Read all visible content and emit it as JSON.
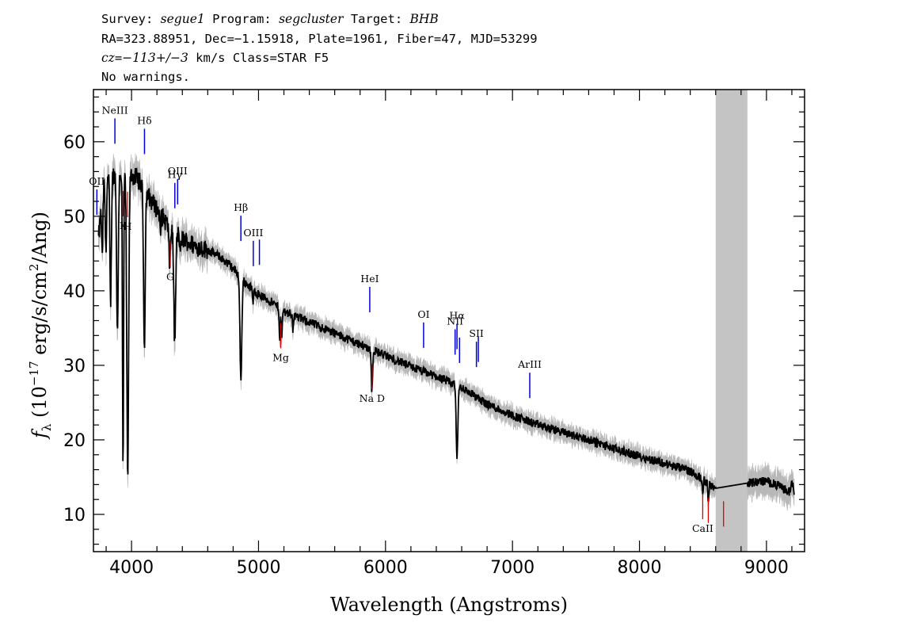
{
  "header": {
    "line1": {
      "survey_label": "Survey: ",
      "survey": "segue1",
      "program_label": " Program: ",
      "program": "segcluster",
      "target_label": " Target: ",
      "target": "BHB"
    },
    "line2": "RA=323.88951, Dec=−1.15918, Plate=1961, Fiber=47, MJD=53299",
    "line3": {
      "cz_label": "cz",
      "cz_mid": "=",
      "cz_value": "−113+/−3",
      "rest": " km/s Class=STAR F5"
    },
    "line4": "No warnings."
  },
  "chart_data": {
    "type": "line",
    "xlabel": "Wavelength (Angstroms)",
    "ylabel": {
      "f": "f",
      "sub": "λ",
      "a": " (10",
      "exp": "−17",
      "b": " erg/s/cm",
      "exp2": "2",
      "c": "/Ang)"
    },
    "xlim": [
      3700,
      9300
    ],
    "ylim": [
      5,
      67
    ],
    "x_ticks": [
      4000,
      5000,
      6000,
      7000,
      8000,
      9000
    ],
    "x_tick_labels": [
      "4000",
      "5000",
      "6000",
      "7000",
      "8000",
      "9000"
    ],
    "y_ticks": [
      10,
      20,
      30,
      40,
      50,
      60
    ],
    "y_tick_labels": [
      "10",
      "20",
      "30",
      "40",
      "50",
      "60"
    ],
    "masked_region": [
      8600,
      8850
    ],
    "continuum": [
      [
        3740,
        47
      ],
      [
        3780,
        54
      ],
      [
        3800,
        55
      ],
      [
        3900,
        56
      ],
      [
        3950,
        55
      ],
      [
        4000,
        55.5
      ],
      [
        4050,
        55
      ],
      [
        4100,
        53.5
      ],
      [
        4200,
        51
      ],
      [
        4300,
        48.5
      ],
      [
        4400,
        47
      ],
      [
        4500,
        46
      ],
      [
        4600,
        45.5
      ],
      [
        4700,
        44.5
      ],
      [
        4800,
        43
      ],
      [
        4900,
        41
      ],
      [
        5000,
        39.5
      ],
      [
        5100,
        38.5
      ],
      [
        5200,
        37.3
      ],
      [
        5400,
        35.8
      ],
      [
        5600,
        34.3
      ],
      [
        5800,
        32.8
      ],
      [
        6000,
        31.3
      ],
      [
        6200,
        29.8
      ],
      [
        6400,
        28.5
      ],
      [
        6600,
        27
      ],
      [
        6800,
        24.8
      ],
      [
        7000,
        23.3
      ],
      [
        7200,
        22
      ],
      [
        7400,
        21
      ],
      [
        7600,
        20
      ],
      [
        7800,
        18.8
      ],
      [
        8000,
        17.8
      ],
      [
        8200,
        16.8
      ],
      [
        8400,
        15.8
      ],
      [
        8600,
        13.5
      ],
      [
        8850,
        14.2
      ],
      [
        9000,
        14.5
      ],
      [
        9100,
        13.8
      ],
      [
        9180,
        13
      ],
      [
        9200,
        14.3
      ],
      [
        9220,
        13
      ]
    ],
    "absorption_lines": [
      {
        "x": 3770,
        "depth": 8,
        "w": 6
      },
      {
        "x": 3798,
        "depth": 10,
        "w": 7
      },
      {
        "x": 3835,
        "depth": 17,
        "w": 8
      },
      {
        "x": 3889,
        "depth": 22,
        "w": 9
      },
      {
        "x": 3933,
        "depth": 40,
        "w": 6
      },
      {
        "x": 3970,
        "depth": 41,
        "w": 10
      },
      {
        "x": 4101,
        "depth": 21,
        "w": 9
      },
      {
        "x": 4227,
        "depth": 3,
        "w": 5
      },
      {
        "x": 4300,
        "depth": 5,
        "w": 8
      },
      {
        "x": 4340,
        "depth": 15,
        "w": 10
      },
      {
        "x": 4384,
        "depth": 3,
        "w": 5
      },
      {
        "x": 4861,
        "depth": 14,
        "w": 10
      },
      {
        "x": 4957,
        "depth": 2,
        "w": 5
      },
      {
        "x": 5167,
        "depth": 4,
        "w": 6
      },
      {
        "x": 5183,
        "depth": 4,
        "w": 6
      },
      {
        "x": 5270,
        "depth": 2,
        "w": 5
      },
      {
        "x": 5890,
        "depth": 4,
        "w": 5
      },
      {
        "x": 5896,
        "depth": 4,
        "w": 5
      },
      {
        "x": 6563,
        "depth": 10,
        "w": 9
      },
      {
        "x": 8498,
        "depth": 1.5,
        "w": 5
      },
      {
        "x": 8542,
        "depth": 2.5,
        "w": 5
      }
    ],
    "emission_lines": [
      {
        "label": "OII",
        "x": 3727,
        "color": "#0000dd"
      },
      {
        "label": "NeIII",
        "x": 3869,
        "color": "#0000dd"
      },
      {
        "label": "Hδ",
        "x": 4102,
        "color": "#0000dd"
      },
      {
        "label": "Hγ",
        "x": 4341,
        "color": "#0000dd"
      },
      {
        "label": "OIII",
        "x": 4363,
        "color": "#0000dd"
      },
      {
        "label": "Hβ",
        "x": 4861,
        "color": "#0000dd"
      },
      {
        "label": "OIII",
        "x": 4959,
        "color": "#0000dd"
      },
      {
        "label": "OIII",
        "x": 5007,
        "color": "#0000dd"
      },
      {
        "label": "HeI",
        "x": 5876,
        "color": "#0000dd"
      },
      {
        "label": "OI",
        "x": 6300,
        "color": "#0000dd"
      },
      {
        "label": "NII",
        "x": 6548,
        "color": "#0000dd"
      },
      {
        "label": "Hα",
        "x": 6563,
        "color": "#0000dd"
      },
      {
        "label": "NII",
        "x": 6583,
        "color": "#0000dd"
      },
      {
        "label": "SII",
        "x": 6716,
        "color": "#0000dd"
      },
      {
        "label": "SII",
        "x": 6731,
        "color": "#0000dd"
      },
      {
        "label": "ArIII",
        "x": 7136,
        "color": "#0000dd"
      }
    ],
    "absorption_markers": [
      {
        "label": "K",
        "x": 3934,
        "color": "#dd0000"
      },
      {
        "label": "H",
        "x": 3969,
        "color": "#dd0000"
      },
      {
        "label": "G",
        "x": 4305,
        "color": "#dd0000"
      },
      {
        "label": "Mg",
        "x": 5175,
        "color": "#dd0000"
      },
      {
        "label": "Na D",
        "x": 5894,
        "color": "#dd0000"
      },
      {
        "label": "CaII",
        "x": 8498,
        "color": "#dd0000"
      },
      {
        "label": "CaII",
        "x": 8542,
        "color": "#dd0000"
      },
      {
        "label": "CaII",
        "x": 8662,
        "color": "#dd0000"
      }
    ],
    "colors": {
      "spectrum": "#000000",
      "noise": "#b8b8b8",
      "mask": "#c4c4c4",
      "emission": "#0000dd",
      "absorption": "#dd0000"
    }
  }
}
